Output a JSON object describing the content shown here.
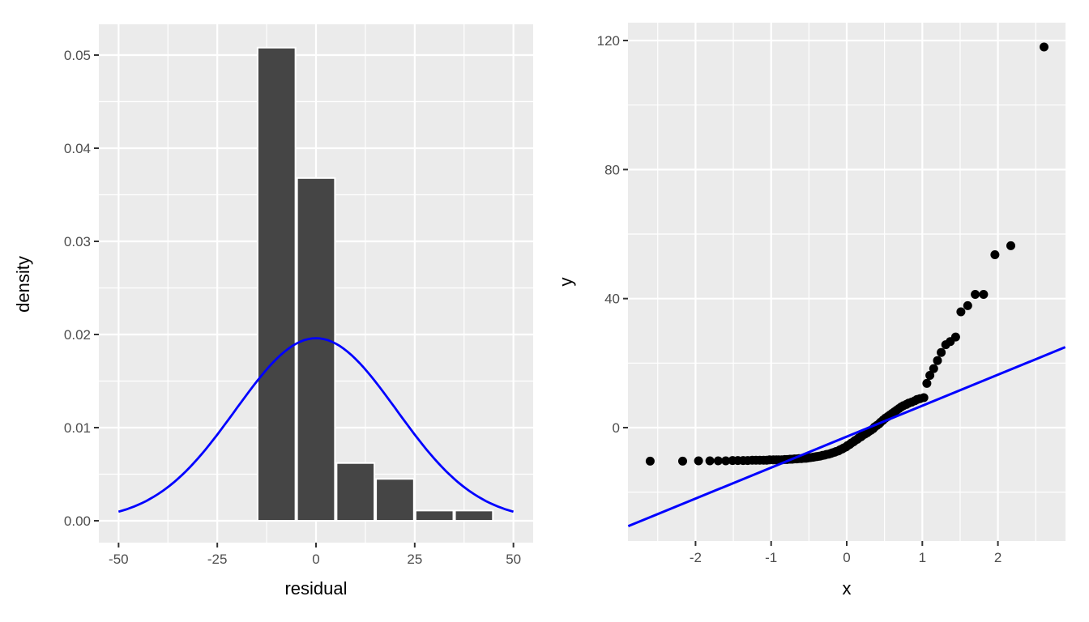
{
  "style": {
    "figure_bg": "#FFFFFF",
    "panel_bg": "#EBEBEB",
    "grid_color": "#FFFFFF",
    "tick_mark_color": "#333333",
    "tick_label_color": "#4D4D4D",
    "axis_title_color": "#000000",
    "bar_fill": "#454545",
    "bar_stroke": "#FFFFFF",
    "accent_blue": "#0000FF",
    "point_color": "#000000"
  },
  "chart_data": [
    {
      "name": "residual-histogram",
      "type": "bar",
      "subtype": "density_histogram_with_normal_curve",
      "title": "",
      "xlabel": "residual",
      "ylabel": "density",
      "xlim": [
        -55,
        55
      ],
      "ylim": [
        -0.0025,
        0.0533
      ],
      "grid": true,
      "legend": false,
      "x_ticks": {
        "values": [
          -50,
          -25,
          0,
          25,
          50
        ],
        "labels": [
          "-50",
          "-25",
          "0",
          "25",
          "50"
        ],
        "minor": [
          -37.5,
          -12.5,
          12.5,
          37.5
        ]
      },
      "y_ticks": {
        "values": [
          0,
          0.01,
          0.02,
          0.03,
          0.04,
          0.05
        ],
        "labels": [
          "0.00",
          "0.01",
          "0.02",
          "0.03",
          "0.04",
          "0.05"
        ],
        "minor": [
          0.005,
          0.015,
          0.025,
          0.035,
          0.045
        ]
      },
      "bars": {
        "bin_width": 10,
        "bins": [
          {
            "x0": -15,
            "x1": -5,
            "density": 0.0508
          },
          {
            "x0": -5,
            "x1": 5,
            "density": 0.0368
          },
          {
            "x0": 5,
            "x1": 15,
            "density": 0.0062
          },
          {
            "x0": 15,
            "x1": 25,
            "density": 0.0045
          },
          {
            "x0": 25,
            "x1": 35,
            "density": 0.0011
          },
          {
            "x0": 35,
            "x1": 45,
            "density": 0.0011
          }
        ]
      },
      "curve": {
        "distribution": "normal",
        "mean": 0,
        "sd": 20.4,
        "peak_density": 0.0196,
        "x_range": [
          -50,
          50
        ]
      }
    },
    {
      "name": "qq-plot",
      "type": "scatter",
      "subtype": "qq_plot_with_reference_line",
      "title": "",
      "xlabel": "x",
      "ylabel": "y",
      "xlim": [
        -2.89,
        2.89
      ],
      "ylim": [
        -35.1,
        125.5
      ],
      "grid": true,
      "legend": false,
      "x_ticks": {
        "values": [
          -2,
          -1,
          0,
          1,
          2
        ],
        "labels": [
          "-2",
          "-1",
          "0",
          "1",
          "2"
        ],
        "minor": [
          -2.5,
          -1.5,
          -0.5,
          0.5,
          1.5,
          2.5
        ]
      },
      "y_ticks": {
        "values": [
          0,
          40,
          80,
          120
        ],
        "labels": [
          "0",
          "40",
          "80",
          "120"
        ],
        "minor": [
          -20,
          20,
          60,
          100
        ]
      },
      "line": {
        "slope": 9.6,
        "intercept": -2.8
      },
      "points": [
        [
          -2.6,
          -10.4
        ],
        [
          -2.17,
          -10.4
        ],
        [
          -1.96,
          -10.3
        ],
        [
          -1.81,
          -10.3
        ],
        [
          -1.7,
          -10.3
        ],
        [
          -1.6,
          -10.3
        ],
        [
          -1.51,
          -10.2
        ],
        [
          -1.44,
          -10.2
        ],
        [
          -1.37,
          -10.2
        ],
        [
          -1.31,
          -10.2
        ],
        [
          -1.25,
          -10.1
        ],
        [
          -1.2,
          -10.1
        ],
        [
          -1.15,
          -10.1
        ],
        [
          -1.1,
          -10.1
        ],
        [
          -1.06,
          -10.1
        ],
        [
          -1.02,
          -10.0
        ],
        [
          -0.97,
          -10.0
        ],
        [
          -0.93,
          -10.0
        ],
        [
          -0.9,
          -10.0
        ],
        [
          -0.86,
          -10.0
        ],
        [
          -0.82,
          -9.9
        ],
        [
          -0.79,
          -9.9
        ],
        [
          -0.75,
          -9.8
        ],
        [
          -0.72,
          -9.8
        ],
        [
          -0.69,
          -9.7
        ],
        [
          -0.66,
          -9.7
        ],
        [
          -0.63,
          -9.6
        ],
        [
          -0.6,
          -9.6
        ],
        [
          -0.57,
          -9.5
        ],
        [
          -0.54,
          -9.5
        ],
        [
          -0.51,
          -9.4
        ],
        [
          -0.48,
          -9.3
        ],
        [
          -0.45,
          -9.2
        ],
        [
          -0.43,
          -9.1
        ],
        [
          -0.4,
          -9.0
        ],
        [
          -0.37,
          -8.9
        ],
        [
          -0.35,
          -8.8
        ],
        [
          -0.32,
          -8.6
        ],
        [
          -0.29,
          -8.5
        ],
        [
          -0.27,
          -8.3
        ],
        [
          -0.24,
          -8.2
        ],
        [
          -0.21,
          -8.0
        ],
        [
          -0.19,
          -7.8
        ],
        [
          -0.16,
          -7.6
        ],
        [
          -0.14,
          -7.4
        ],
        [
          -0.11,
          -7.2
        ],
        [
          -0.09,
          -6.9
        ],
        [
          -0.06,
          -6.6
        ],
        [
          -0.04,
          -6.3
        ],
        [
          -0.01,
          -6.0
        ],
        [
          0.01,
          -5.6
        ],
        [
          0.04,
          -5.2
        ],
        [
          0.06,
          -4.8
        ],
        [
          0.09,
          -4.4
        ],
        [
          0.11,
          -4.0
        ],
        [
          0.14,
          -3.6
        ],
        [
          0.16,
          -3.2
        ],
        [
          0.19,
          -2.8
        ],
        [
          0.21,
          -2.4
        ],
        [
          0.24,
          -2.0
        ],
        [
          0.27,
          -1.6
        ],
        [
          0.29,
          -1.2
        ],
        [
          0.32,
          -0.8
        ],
        [
          0.35,
          -0.3
        ],
        [
          0.37,
          0.2
        ],
        [
          0.4,
          0.7
        ],
        [
          0.43,
          1.2
        ],
        [
          0.45,
          1.7
        ],
        [
          0.48,
          2.3
        ],
        [
          0.51,
          2.9
        ],
        [
          0.54,
          3.4
        ],
        [
          0.57,
          3.9
        ],
        [
          0.6,
          4.4
        ],
        [
          0.63,
          4.9
        ],
        [
          0.66,
          5.4
        ],
        [
          0.69,
          5.9
        ],
        [
          0.72,
          6.4
        ],
        [
          0.75,
          6.8
        ],
        [
          0.79,
          7.2
        ],
        [
          0.82,
          7.6
        ],
        [
          0.86,
          7.9
        ],
        [
          0.9,
          8.3
        ],
        [
          0.93,
          8.7
        ],
        [
          0.97,
          9.0
        ],
        [
          1.02,
          9.3
        ],
        [
          1.06,
          13.7
        ],
        [
          1.1,
          16.2
        ],
        [
          1.15,
          18.3
        ],
        [
          1.2,
          20.8
        ],
        [
          1.25,
          23.3
        ],
        [
          1.31,
          25.7
        ],
        [
          1.37,
          26.7
        ],
        [
          1.44,
          28.1
        ],
        [
          1.51,
          35.9
        ],
        [
          1.6,
          37.8
        ],
        [
          1.7,
          41.3
        ],
        [
          1.81,
          41.3
        ],
        [
          1.96,
          53.6
        ],
        [
          2.17,
          56.4
        ],
        [
          2.61,
          118.0
        ]
      ]
    }
  ]
}
